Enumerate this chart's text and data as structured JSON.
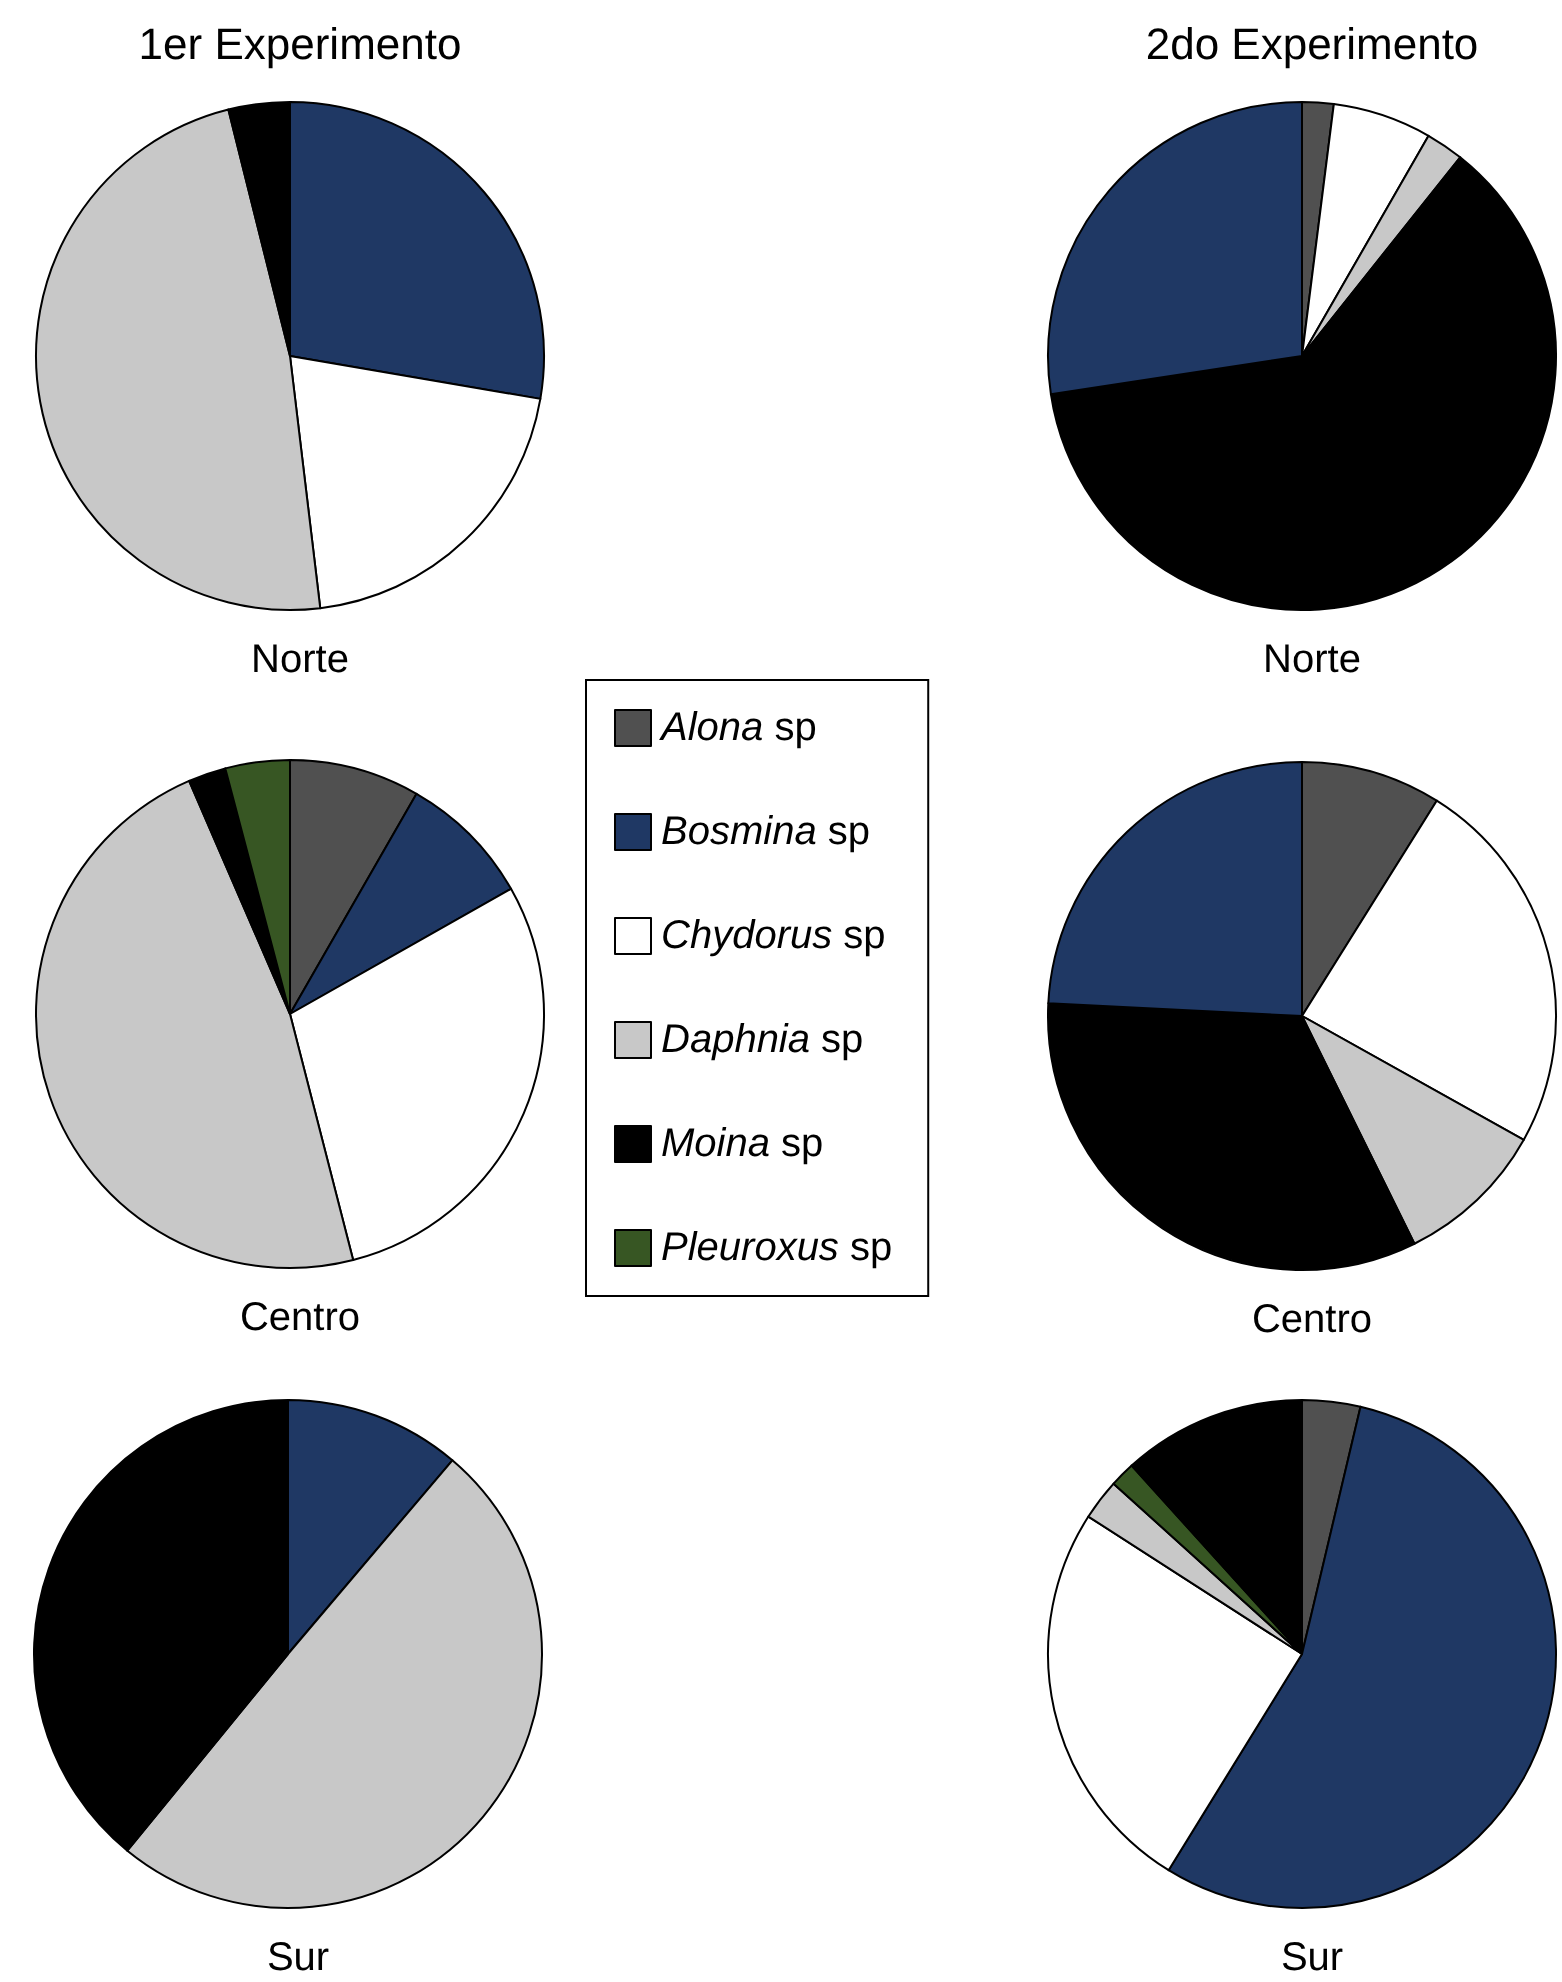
{
  "chart_data": [
    {
      "type": "pie",
      "title": "1er Experimento",
      "subtitle": "Norte",
      "categories": [
        null,
        null,
        null,
        null
      ],
      "values": [
        27.7,
        20.4,
        48,
        3.9
      ],
      "colors": [
        "#1f3864",
        "#ffffff",
        "#c8c8c8",
        "#000000"
      ]
    },
    {
      "type": "pie",
      "title": "2do Experimento",
      "subtitle": "Norte",
      "categories": [
        null,
        null,
        null,
        null,
        null
      ],
      "values": [
        2,
        6.3,
        2.4,
        61.9,
        27.4
      ],
      "colors": [
        "#505050",
        "#ffffff",
        "#c8c8c8",
        "#000000",
        "#1f3864"
      ]
    },
    {
      "type": "pie",
      "subtitle": "Centro",
      "legend": "right",
      "categories": [
        "Alona sp",
        "Bosmina sp",
        "Chydorus sp",
        "Daphnia sp",
        "Moina sp",
        "Pleuroxus sp"
      ],
      "values": [
        8.3,
        8.5,
        29.2,
        47.5,
        2.4,
        4.1
      ],
      "colors": [
        "#505050",
        "#1f3864",
        "#ffffff",
        "#c8c8c8",
        "#000000",
        "#375623"
      ]
    },
    {
      "type": "pie",
      "subtitle": "Centro",
      "categories": [
        null,
        null,
        null,
        null,
        null
      ],
      "values": [
        8.9,
        24.2,
        9.6,
        33.1,
        24.2
      ],
      "colors": [
        "#505050",
        "#ffffff",
        "#c8c8c8",
        "#000000",
        "#1f3864"
      ]
    },
    {
      "type": "pie",
      "subtitle": "Sur",
      "categories": [
        null,
        null,
        null
      ],
      "values": [
        11.2,
        49.7,
        39.1
      ],
      "colors": [
        "#1f3864",
        "#c8c8c8",
        "#000000"
      ]
    },
    {
      "type": "pie",
      "subtitle": "Sur",
      "categories": [
        null,
        null,
        null,
        null,
        null,
        null
      ],
      "values": [
        3.7,
        55.1,
        25.3,
        2.6,
        1.6,
        11.7
      ],
      "colors": [
        "#505050",
        "#1f3864",
        "#ffffff",
        "#c8c8c8",
        "#375623",
        "#000000"
      ]
    }
  ]
}
